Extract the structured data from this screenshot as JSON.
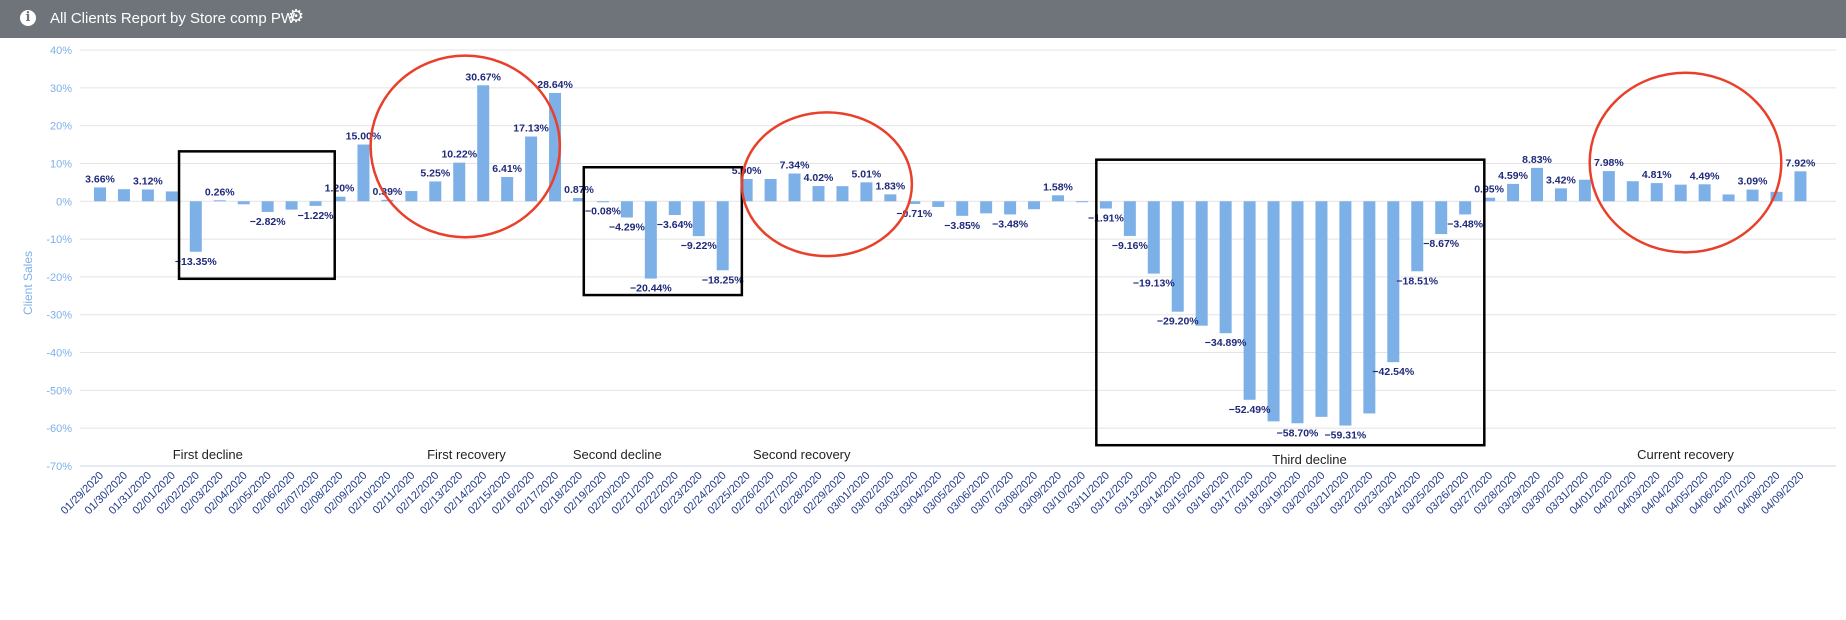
{
  "header": {
    "title": "All Clients Report by Store comp PW",
    "info_icon": "info-icon",
    "settings_icon": "gear-icon",
    "background_color": "#6e747a"
  },
  "chart_data": {
    "type": "bar",
    "title": "",
    "xlabel": "",
    "ylabel": "Client Sales",
    "ylim": [
      -70,
      40
    ],
    "yticks": [
      "40%",
      "30%",
      "20%",
      "10%",
      "0%",
      "-10%",
      "-20%",
      "-30%",
      "-40%",
      "-50%",
      "-60%",
      "-70%"
    ],
    "grid": true,
    "bar_color": "#7eb0e8",
    "label_color": "#1f2a7a",
    "categories": [
      "01/29/2020",
      "01/30/2020",
      "01/31/2020",
      "02/01/2020",
      "02/02/2020",
      "02/03/2020",
      "02/04/2020",
      "02/05/2020",
      "02/06/2020",
      "02/07/2020",
      "02/08/2020",
      "02/09/2020",
      "02/10/2020",
      "02/11/2020",
      "02/12/2020",
      "02/13/2020",
      "02/14/2020",
      "02/15/2020",
      "02/16/2020",
      "02/17/2020",
      "02/18/2020",
      "02/19/2020",
      "02/20/2020",
      "02/21/2020",
      "02/22/2020",
      "02/23/2020",
      "02/24/2020",
      "02/25/2020",
      "02/26/2020",
      "02/27/2020",
      "02/28/2020",
      "02/29/2020",
      "03/01/2020",
      "03/02/2020",
      "03/03/2020",
      "03/04/2020",
      "03/05/2020",
      "03/06/2020",
      "03/07/2020",
      "03/08/2020",
      "03/09/2020",
      "03/10/2020",
      "03/11/2020",
      "03/12/2020",
      "03/13/2020",
      "03/14/2020",
      "03/15/2020",
      "03/16/2020",
      "03/17/2020",
      "03/18/2020",
      "03/19/2020",
      "03/20/2020",
      "03/21/2020",
      "03/22/2020",
      "03/23/2020",
      "03/24/2020",
      "03/25/2020",
      "03/26/2020",
      "03/27/2020",
      "03/28/2020",
      "03/29/2020",
      "03/30/2020",
      "03/31/2020",
      "04/01/2020",
      "04/02/2020",
      "04/03/2020",
      "04/04/2020",
      "04/05/2020",
      "04/06/2020",
      "04/07/2020",
      "04/08/2020",
      "04/09/2020"
    ],
    "values": [
      3.66,
      3.2,
      3.12,
      2.6,
      -13.35,
      0.26,
      -0.8,
      -2.82,
      -2.2,
      -1.22,
      1.2,
      15.0,
      0.39,
      2.7,
      5.25,
      10.22,
      30.67,
      6.41,
      17.13,
      28.64,
      0.87,
      -0.08,
      -4.29,
      -20.44,
      -3.64,
      -9.22,
      -18.25,
      5.9,
      5.9,
      7.34,
      4.02,
      4.0,
      5.01,
      1.83,
      -0.71,
      -1.5,
      -3.85,
      -3.2,
      -3.48,
      -2.1,
      1.58,
      -0.2,
      -1.91,
      -9.16,
      -19.13,
      -29.2,
      -32.9,
      -34.89,
      -52.49,
      -58.2,
      -58.7,
      -57.0,
      -59.31,
      -56.1,
      -42.54,
      -18.51,
      -8.67,
      -3.48,
      0.95,
      4.59,
      8.83,
      3.42,
      5.7,
      7.98,
      5.3,
      4.81,
      4.4,
      4.49,
      1.8,
      3.09,
      2.5,
      7.92
    ],
    "data_labels": [
      {
        "i": 0,
        "text": "3.66%"
      },
      {
        "i": 2,
        "text": "3.12%"
      },
      {
        "i": 4,
        "text": "−13.35%"
      },
      {
        "i": 5,
        "text": "0.26%"
      },
      {
        "i": 7,
        "text": "−2.82%"
      },
      {
        "i": 9,
        "text": "−1.22%"
      },
      {
        "i": 10,
        "text": "1.20%"
      },
      {
        "i": 11,
        "text": "15.00%"
      },
      {
        "i": 12,
        "text": "0.39%"
      },
      {
        "i": 14,
        "text": "5.25%"
      },
      {
        "i": 15,
        "text": "10.22%"
      },
      {
        "i": 16,
        "text": "30.67%"
      },
      {
        "i": 17,
        "text": "6.41%"
      },
      {
        "i": 18,
        "text": "17.13%"
      },
      {
        "i": 19,
        "text": "28.64%"
      },
      {
        "i": 20,
        "text": "0.87%"
      },
      {
        "i": 21,
        "text": "−0.08%"
      },
      {
        "i": 22,
        "text": "−4.29%"
      },
      {
        "i": 23,
        "text": "−20.44%"
      },
      {
        "i": 24,
        "text": "−3.64%"
      },
      {
        "i": 25,
        "text": "−9.22%"
      },
      {
        "i": 26,
        "text": "−18.25%"
      },
      {
        "i": 27,
        "text": "5.90%"
      },
      {
        "i": 29,
        "text": "7.34%"
      },
      {
        "i": 30,
        "text": "4.02%"
      },
      {
        "i": 32,
        "text": "5.01%"
      },
      {
        "i": 33,
        "text": "1.83%"
      },
      {
        "i": 34,
        "text": "−0.71%"
      },
      {
        "i": 36,
        "text": "−3.85%"
      },
      {
        "i": 38,
        "text": "−3.48%"
      },
      {
        "i": 40,
        "text": "1.58%"
      },
      {
        "i": 42,
        "text": "−1.91%"
      },
      {
        "i": 43,
        "text": "−9.16%"
      },
      {
        "i": 44,
        "text": "−19.13%"
      },
      {
        "i": 45,
        "text": "−29.20%"
      },
      {
        "i": 47,
        "text": "−34.89%"
      },
      {
        "i": 48,
        "text": "−52.49%"
      },
      {
        "i": 50,
        "text": "−58.70%"
      },
      {
        "i": 52,
        "text": "−59.31%"
      },
      {
        "i": 54,
        "text": "−42.54%"
      },
      {
        "i": 55,
        "text": "−18.51%"
      },
      {
        "i": 56,
        "text": "−8.67%"
      },
      {
        "i": 57,
        "text": "−3.48%"
      },
      {
        "i": 58,
        "text": "0.95%"
      },
      {
        "i": 59,
        "text": "4.59%"
      },
      {
        "i": 60,
        "text": "8.83%"
      },
      {
        "i": 61,
        "text": "3.42%"
      },
      {
        "i": 63,
        "text": "7.98%"
      },
      {
        "i": 65,
        "text": "4.81%"
      },
      {
        "i": 67,
        "text": "4.49%"
      },
      {
        "i": 69,
        "text": "3.09%"
      },
      {
        "i": 71,
        "text": "7.92%"
      }
    ],
    "annotations": [
      {
        "text": "First decline",
        "center": 4.5,
        "shape": "rect",
        "from": 3.3,
        "to": 9.8,
        "top": 13.2,
        "bottom": -20.5
      },
      {
        "text": "First recovery",
        "center": 15.3,
        "shape": "ellipse",
        "from": 11.3,
        "to": 19.2,
        "top": 38.5,
        "bottom": -9.5
      },
      {
        "text": "Second decline",
        "center": 21.6,
        "shape": "rect",
        "from": 20.2,
        "to": 26.8,
        "top": 9.0,
        "bottom": -24.8
      },
      {
        "text": "Second recovery",
        "center": 29.3,
        "shape": "ellipse",
        "from": 26.8,
        "to": 33.9,
        "top": 23.5,
        "bottom": -14.5
      },
      {
        "text": "Third decline",
        "center": 50.5,
        "shape": "rect",
        "from": 41.6,
        "to": 57.8,
        "top": 11.0,
        "bottom": -64.5
      },
      {
        "text": "Current recovery",
        "center": 66.2,
        "shape": "ellipse",
        "from": 62.2,
        "to": 70.2,
        "top": 34.0,
        "bottom": -13.5
      }
    ]
  }
}
